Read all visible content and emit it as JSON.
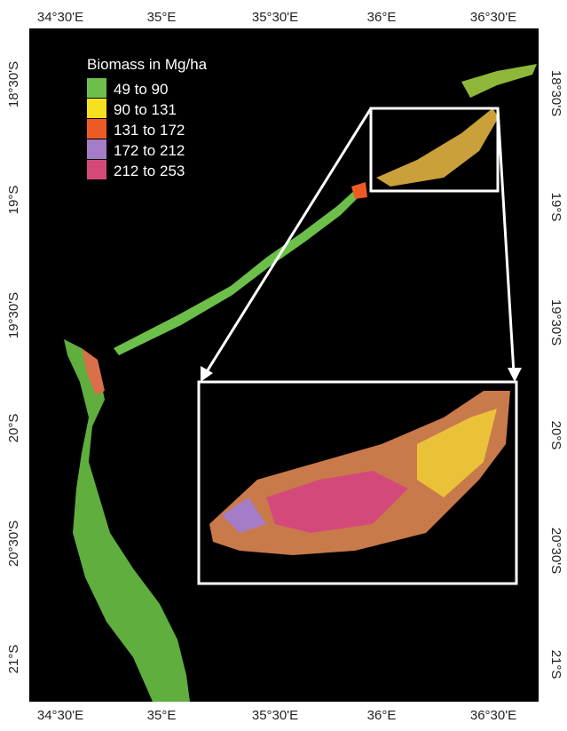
{
  "map": {
    "longitude_labels": [
      "34°30'E",
      "35°E",
      "35°30'E",
      "36°E",
      "36°30'E"
    ],
    "latitude_labels": [
      "18°30'S",
      "19°S",
      "19°30'S",
      "20°S",
      "20°30'S",
      "21°S"
    ],
    "legend": {
      "title": "Biomass in Mg/ha",
      "items": [
        {
          "label": "49 to 90",
          "color": "#6cc04a"
        },
        {
          "label": "90 to 131",
          "color": "#f5e11e"
        },
        {
          "label": "131 to 172",
          "color": "#ee5a24"
        },
        {
          "label": "172 to 212",
          "color": "#a57cc8"
        },
        {
          "label": "212 to 253",
          "color": "#d34a7a"
        }
      ]
    }
  }
}
